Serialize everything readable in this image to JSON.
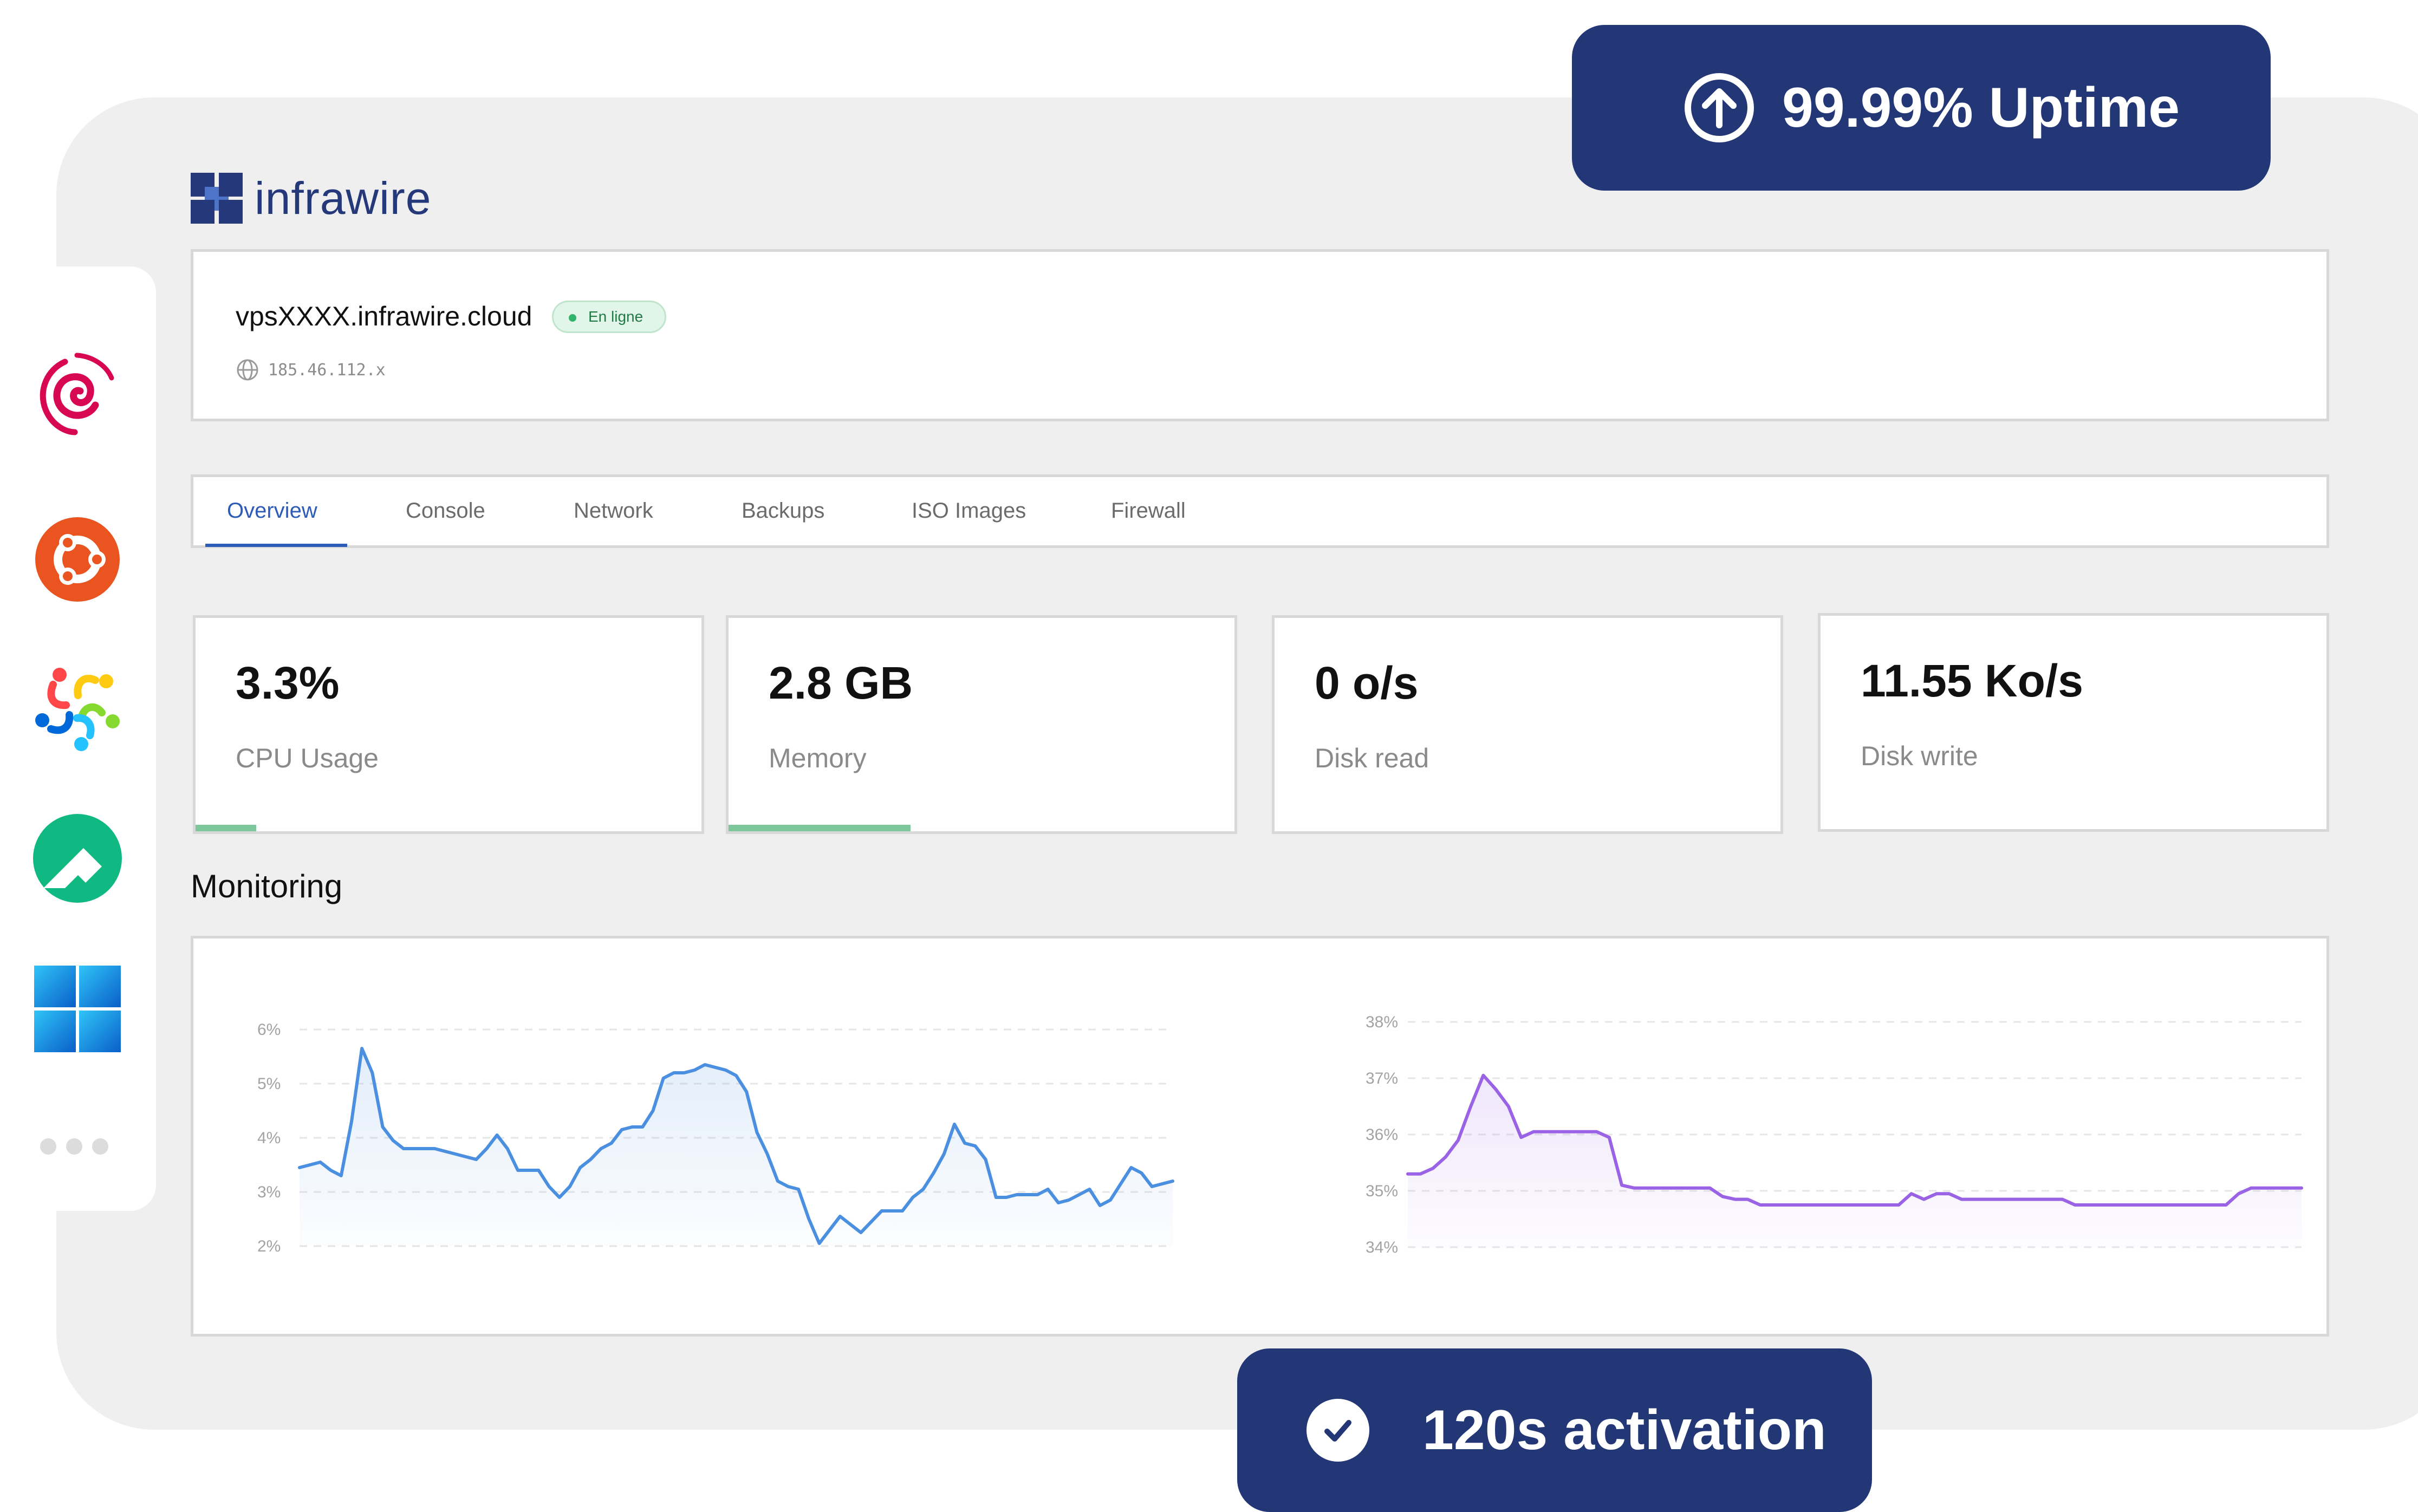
{
  "brand": {
    "name": "infrawire",
    "accent_color": "#24387a",
    "badge_color": "#233777"
  },
  "uptime_badge": {
    "icon": "arrow-up-circle-icon",
    "label": "99.99% Uptime"
  },
  "activation_badge": {
    "icon": "check-circle-icon",
    "label": "120s activation"
  },
  "os_sidebar": {
    "items": [
      {
        "name": "debian",
        "icon": "debian-icon",
        "color": "#d70751"
      },
      {
        "name": "ubuntu",
        "icon": "ubuntu-icon",
        "color": "#e95420"
      },
      {
        "name": "almalinux",
        "icon": "almalinux-icon",
        "color": "#ff4649"
      },
      {
        "name": "rocky-linux",
        "icon": "rocky-linux-icon",
        "color": "#10b981"
      },
      {
        "name": "windows",
        "icon": "windows-icon",
        "color": "#0a7cd8"
      }
    ],
    "more_icon": "more-dots-icon"
  },
  "server": {
    "hostname": "vpsXXXX.infrawire.cloud",
    "status": "En ligne",
    "ip": "185.46.112.x",
    "ip_icon": "globe-icon"
  },
  "tabs": [
    {
      "label": "Overview",
      "active": true
    },
    {
      "label": "Console",
      "active": false
    },
    {
      "label": "Network",
      "active": false
    },
    {
      "label": "Backups",
      "active": false
    },
    {
      "label": "ISO Images",
      "active": false
    },
    {
      "label": "Firewall",
      "active": false
    }
  ],
  "stats": [
    {
      "value": "3.3%",
      "label": "CPU Usage",
      "usage_fraction": 0.12
    },
    {
      "value": "2.8 GB",
      "label": "Memory",
      "usage_fraction": 0.36
    },
    {
      "value": "0 o/s",
      "label": "Disk read"
    },
    {
      "value": "11.55 Ko/s",
      "label": "Disk write"
    }
  ],
  "monitoring": {
    "title": "Monitoring"
  },
  "chart_data": [
    {
      "type": "area",
      "title": "",
      "xlabel": "",
      "ylabel": "",
      "ylim": [
        2,
        6
      ],
      "yticks": [
        "6%",
        "5%",
        "4%",
        "3%",
        "2%"
      ],
      "ytick_values": [
        6,
        5,
        4,
        3,
        2
      ],
      "grid": true,
      "color": "#4a8fe0",
      "series": [
        {
          "values": [
            3.45,
            3.5,
            3.55,
            3.4,
            3.3,
            4.3,
            5.65,
            5.2,
            4.2,
            3.95,
            3.8,
            3.8,
            3.8,
            3.8,
            3.75,
            3.7,
            3.65,
            3.6,
            3.8,
            4.05,
            3.8,
            3.4,
            3.4,
            3.4,
            3.1,
            2.9,
            3.1,
            3.45,
            3.6,
            3.8,
            3.9,
            4.15,
            4.2,
            4.2,
            4.5,
            5.1,
            5.2,
            5.2,
            5.25,
            5.35,
            5.3,
            5.25,
            5.15,
            4.85,
            4.1,
            3.7,
            3.2,
            3.1,
            3.05,
            2.5,
            2.05,
            2.3,
            2.55,
            2.4,
            2.25,
            2.45,
            2.65,
            2.65,
            2.65,
            2.9,
            3.05,
            3.35,
            3.7,
            4.25,
            3.9,
            3.85,
            3.6,
            2.9,
            2.9,
            2.95,
            2.95,
            2.95,
            3.05,
            2.8,
            2.85,
            2.95,
            3.05,
            2.75,
            2.85,
            3.15,
            3.45,
            3.35,
            3.1,
            3.15,
            3.2
          ]
        }
      ]
    },
    {
      "type": "area",
      "title": "",
      "xlabel": "",
      "ylabel": "",
      "ylim": [
        34,
        38
      ],
      "yticks": [
        "38%",
        "37%",
        "36%",
        "35%",
        "34%"
      ],
      "ytick_values": [
        38,
        37,
        36,
        35,
        34
      ],
      "grid": true,
      "color": "#9a63e6",
      "series": [
        {
          "values": [
            35.3,
            35.3,
            35.4,
            35.6,
            35.9,
            36.5,
            37.05,
            36.8,
            36.5,
            35.95,
            36.05,
            36.05,
            36.05,
            36.05,
            36.05,
            36.05,
            35.95,
            35.1,
            35.05,
            35.05,
            35.05,
            35.05,
            35.05,
            35.05,
            35.05,
            34.9,
            34.85,
            34.85,
            34.75,
            34.75,
            34.75,
            34.75,
            34.75,
            34.75,
            34.75,
            34.75,
            34.75,
            34.75,
            34.75,
            34.75,
            34.95,
            34.85,
            34.95,
            34.95,
            34.85,
            34.85,
            34.85,
            34.85,
            34.85,
            34.85,
            34.85,
            34.85,
            34.85,
            34.75,
            34.75,
            34.75,
            34.75,
            34.75,
            34.75,
            34.75,
            34.75,
            34.75,
            34.75,
            34.75,
            34.75,
            34.75,
            34.95,
            35.05,
            35.05,
            35.05,
            35.05,
            35.05
          ]
        }
      ]
    }
  ]
}
